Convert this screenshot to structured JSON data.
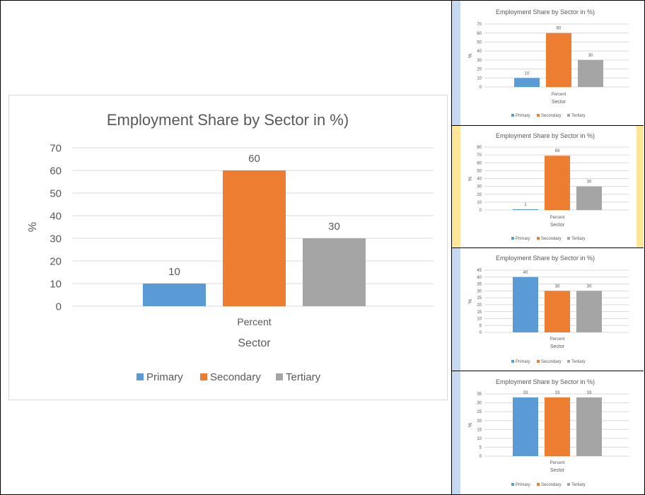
{
  "colors": {
    "primary": "#5b9bd5",
    "secondary": "#ed7d31",
    "tertiary": "#a5a5a5",
    "stripe_blue": "#c5d9f1",
    "stripe_yellow": "#ffe699",
    "grid": "#d9d9d9",
    "text": "#595959"
  },
  "chart_data": [
    {
      "type": "bar",
      "title": "Employment Share by Sector in %)",
      "xlabel": "Sector",
      "ylabel": "%",
      "categories": [
        "Percent"
      ],
      "series": [
        {
          "name": "Primary",
          "values": [
            10
          ]
        },
        {
          "name": "Secondary",
          "values": [
            60
          ]
        },
        {
          "name": "Tertiary",
          "values": [
            30
          ]
        }
      ],
      "ylim": [
        0,
        70
      ],
      "yticks": [
        0,
        10,
        20,
        30,
        40,
        50,
        60,
        70
      ],
      "grid": true,
      "legend": "bottom",
      "data_labels": true
    },
    {
      "type": "bar",
      "title": "Employment Share by Sector in %)",
      "xlabel": "Sector",
      "ylabel": "%",
      "categories": [
        "Percent"
      ],
      "series": [
        {
          "name": "Primary",
          "values": [
            10
          ]
        },
        {
          "name": "Secondary",
          "values": [
            60
          ]
        },
        {
          "name": "Tertiary",
          "values": [
            30
          ]
        }
      ],
      "ylim": [
        0,
        70
      ],
      "yticks": [
        0,
        10,
        20,
        30,
        40,
        50,
        60,
        70
      ],
      "grid": true,
      "legend": "bottom",
      "data_labels": true,
      "stripe": "blue"
    },
    {
      "type": "bar",
      "title": "Employment Share by Sector in %)",
      "xlabel": "Sector",
      "ylabel": "%",
      "categories": [
        "Percent"
      ],
      "series": [
        {
          "name": "Primary",
          "values": [
            1
          ]
        },
        {
          "name": "Secondary",
          "values": [
            69
          ]
        },
        {
          "name": "Tertiary",
          "values": [
            30
          ]
        }
      ],
      "ylim": [
        0,
        80
      ],
      "yticks": [
        0,
        10,
        20,
        30,
        40,
        50,
        60,
        70,
        80
      ],
      "grid": true,
      "legend": "bottom",
      "data_labels": true,
      "stripe": "yellow"
    },
    {
      "type": "bar",
      "title": "Employment Share by Sector in %)",
      "xlabel": "Sector",
      "ylabel": "%",
      "categories": [
        "Percent"
      ],
      "series": [
        {
          "name": "Primary",
          "values": [
            40
          ]
        },
        {
          "name": "Secondary",
          "values": [
            30
          ]
        },
        {
          "name": "Tertiary",
          "values": [
            30
          ]
        }
      ],
      "ylim": [
        0,
        45
      ],
      "yticks": [
        0,
        5,
        10,
        15,
        20,
        25,
        30,
        35,
        40,
        45
      ],
      "grid": true,
      "legend": "bottom",
      "data_labels": true,
      "stripe": "blue"
    },
    {
      "type": "bar",
      "title": "Employment Share by Sector in %)",
      "xlabel": "Sector",
      "ylabel": "%",
      "categories": [
        "Percent"
      ],
      "series": [
        {
          "name": "Primary",
          "values": [
            33
          ]
        },
        {
          "name": "Secondary",
          "values": [
            33
          ]
        },
        {
          "name": "Tertiary",
          "values": [
            33
          ]
        }
      ],
      "ylim": [
        0,
        35
      ],
      "yticks": [
        0,
        5,
        10,
        15,
        20,
        25,
        30,
        35
      ],
      "grid": true,
      "legend": "bottom",
      "data_labels": true,
      "stripe": "blue"
    }
  ]
}
